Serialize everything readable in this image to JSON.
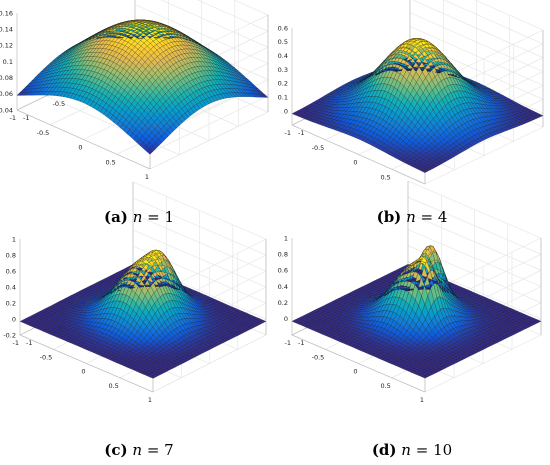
{
  "chart_data": [
    {
      "type": "surface",
      "caption": {
        "letter": "(a)",
        "variable": "n",
        "equals": " = ",
        "value": "1"
      },
      "xlim": [
        -1,
        1
      ],
      "ylim": [
        -1,
        1
      ],
      "zlim": [
        0.04,
        0.16
      ],
      "xticks": [
        "-1",
        "-0.5",
        "0",
        "0.5",
        "1"
      ],
      "yticks": [
        "-1",
        "-0.5",
        "0",
        "0.5",
        "1"
      ],
      "zticks": [
        "0.04",
        "0.06",
        "0.08",
        "0.1",
        "0.12",
        "0.14",
        "0.16"
      ],
      "zvals": [
        0.04,
        0.06,
        0.08,
        0.1,
        0.12,
        0.14,
        0.16
      ],
      "surface": {
        "base": 0.035,
        "peaks": [
          {
            "x": 0,
            "y": 0,
            "amp": 0.11,
            "sigma": 0.8
          }
        ]
      },
      "grid": true,
      "colormap": "parula"
    },
    {
      "type": "surface",
      "caption": {
        "letter": "(b)",
        "variable": "n",
        "equals": " = ",
        "value": "4"
      },
      "xlim": [
        -1,
        1
      ],
      "ylim": [
        -1,
        1
      ],
      "zlim": [
        -0.1,
        0.6
      ],
      "xticks": [
        "-1",
        "-0.5",
        "0",
        "0.5",
        "1"
      ],
      "yticks": [
        "-1",
        "-0.5",
        "0",
        "0.5",
        "1"
      ],
      "zticks": [
        "0",
        "0.1",
        "0.2",
        "0.3",
        "0.4",
        "0.5",
        "0.6"
      ],
      "zvals": [
        0,
        0.1,
        0.2,
        0.3,
        0.4,
        0.5,
        0.6
      ],
      "surface": {
        "base": -0.02,
        "peaks": [
          {
            "x": 0,
            "y": 0,
            "amp": 0.54,
            "sigma": 0.42
          }
        ]
      },
      "grid": true,
      "colormap": "parula"
    },
    {
      "type": "surface",
      "caption": {
        "letter": "(c)",
        "variable": "n",
        "equals": " = ",
        "value": "7"
      },
      "xlim": [
        -1,
        1
      ],
      "ylim": [
        -1,
        1
      ],
      "zlim": [
        -0.2,
        1
      ],
      "xticks": [
        "-1",
        "-0.5",
        "0",
        "0.5",
        "1"
      ],
      "yticks": [
        "-1",
        "-0.5",
        "0",
        "0.5",
        "1"
      ],
      "zticks": [
        "-0.2",
        "0",
        "0.2",
        "0.4",
        "0.6",
        "0.8",
        "1"
      ],
      "zvals": [
        -0.2,
        0,
        0.2,
        0.4,
        0.6,
        0.8,
        1
      ],
      "surface": {
        "base": -0.03,
        "peaks": [
          {
            "x": 0,
            "y": 0,
            "amp": 0.72,
            "sigma": 0.3
          },
          {
            "x": 0.42,
            "y": -0.08,
            "amp": 0.42,
            "sigma": 0.18
          }
        ]
      },
      "grid": true,
      "colormap": "parula"
    },
    {
      "type": "surface",
      "caption": {
        "letter": "(d)",
        "variable": "n",
        "equals": " = ",
        "value": "10"
      },
      "xlim": [
        -1,
        1
      ],
      "ylim": [
        -1,
        1
      ],
      "zlim": [
        -0.2,
        1
      ],
      "xticks": [
        "-1",
        "-0.5",
        "0",
        "0.5",
        "1"
      ],
      "yticks": [
        "-1",
        "-0.5",
        "0",
        "0.5",
        "1"
      ],
      "zticks": [
        "0",
        "0.2",
        "0.4",
        "0.6",
        "0.8",
        "1"
      ],
      "zvals": [
        0,
        0.2,
        0.4,
        0.6,
        0.8,
        1
      ],
      "surface": {
        "base": -0.03,
        "peaks": [
          {
            "x": 0,
            "y": 0,
            "amp": 0.7,
            "sigma": 0.28
          },
          {
            "x": -0.05,
            "y": 0.2,
            "amp": 0.3,
            "sigma": 0.11
          },
          {
            "x": 0.4,
            "y": -0.12,
            "amp": 0.52,
            "sigma": 0.13
          }
        ]
      },
      "grid": true,
      "colormap": "parula"
    }
  ]
}
